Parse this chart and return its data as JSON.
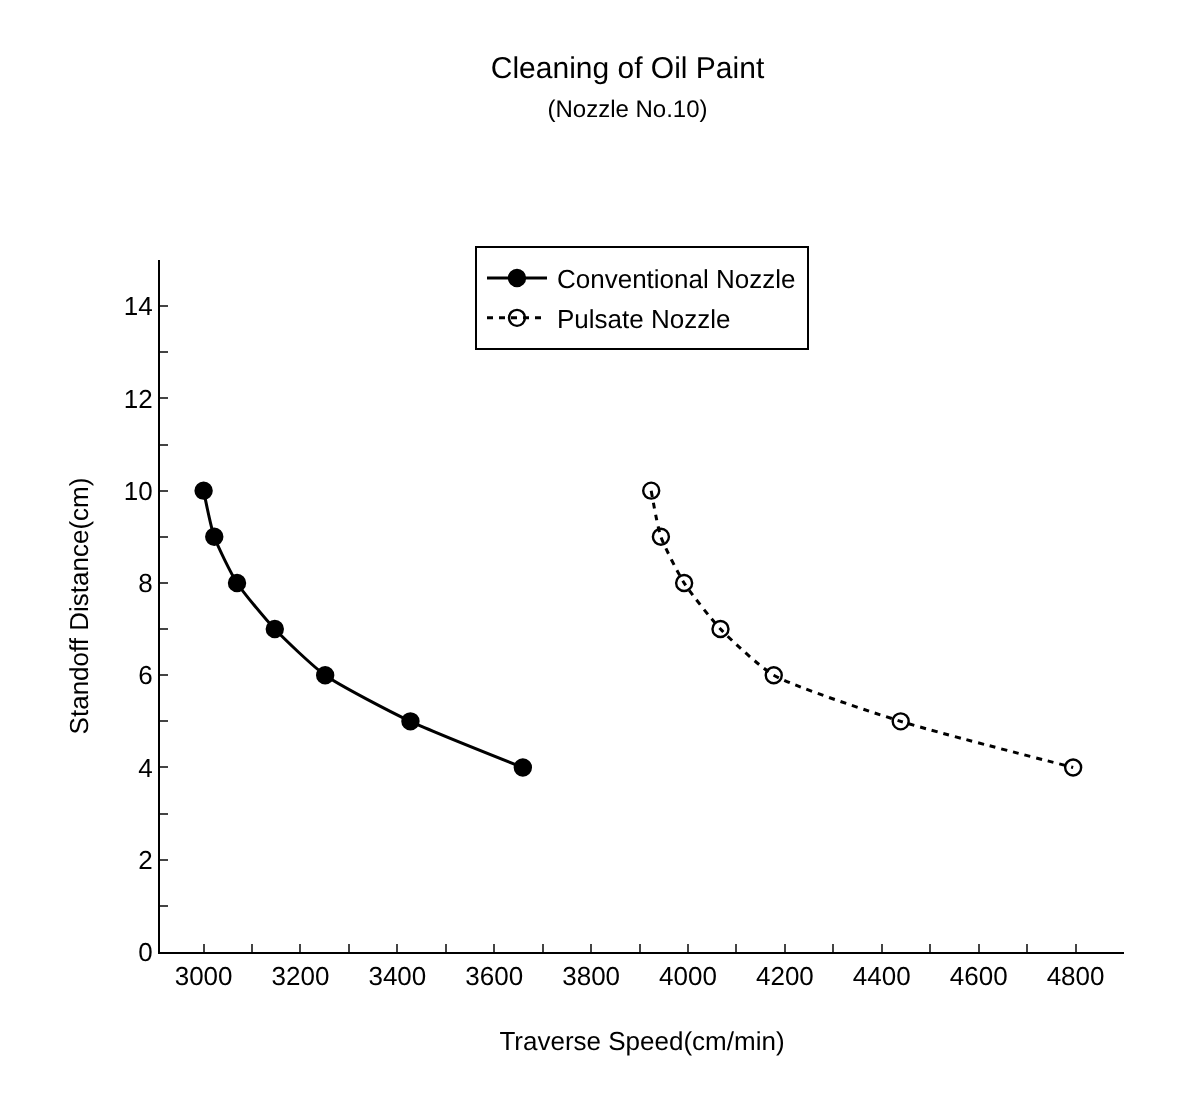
{
  "chart_data": {
    "type": "line",
    "title": "Cleaning of Oil Paint",
    "subtitle": "(Nozzle No.10)",
    "xlabel": "Traverse Speed(cm/min)",
    "ylabel": "Standoff Distance(cm)",
    "xlim": [
      2910,
      4900
    ],
    "ylim": [
      0,
      15
    ],
    "xticks": [
      3000,
      {
        "value": 3100,
        "label": null
      },
      3200,
      {
        "value": 3300,
        "label": null
      },
      3400,
      {
        "value": 3500,
        "label": null
      },
      3600,
      {
        "value": 3700,
        "label": null
      },
      3800,
      {
        "value": 3900,
        "label": null
      },
      4000,
      {
        "value": 4100,
        "label": null
      },
      4200,
      {
        "value": 4300,
        "label": null
      },
      4400,
      {
        "value": 4500,
        "label": null
      },
      4600,
      {
        "value": 4700,
        "label": null
      },
      4800
    ],
    "yticks": [
      0,
      {
        "value": 1,
        "label": null
      },
      2,
      {
        "value": 3,
        "label": null
      },
      4,
      {
        "value": 5,
        "label": null
      },
      6,
      {
        "value": 7,
        "label": null
      },
      8,
      {
        "value": 9,
        "label": null
      },
      10,
      {
        "value": 11,
        "label": null
      },
      12,
      {
        "value": 13,
        "label": null
      },
      14
    ],
    "grid": false,
    "legend": "top",
    "marker": "circle",
    "series": [
      {
        "name": "Conventional Nozzle",
        "color": "#000000",
        "line_style": "solid",
        "x": [
          3000,
          3022,
          3069,
          3147,
          3251,
          3427,
          3659
        ],
        "values": [
          10,
          9,
          8,
          7,
          6,
          5,
          4
        ]
      },
      {
        "name": "Pulsate Nozzle",
        "color": "#000000",
        "line_style": "dotted",
        "x": [
          3924,
          3944,
          3992,
          4067,
          4177,
          4439,
          4795
        ],
        "values": [
          10,
          9,
          8,
          7,
          6,
          5,
          4
        ]
      }
    ]
  }
}
